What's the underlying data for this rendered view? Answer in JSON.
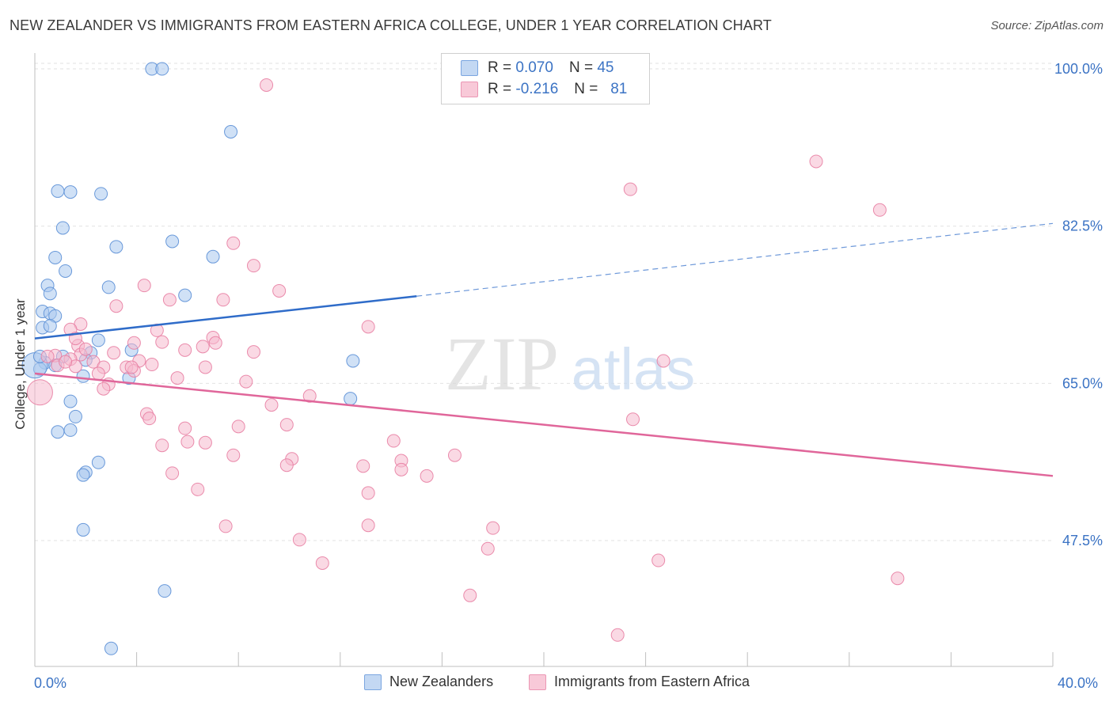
{
  "header": {
    "title": "NEW ZEALANDER VS IMMIGRANTS FROM EASTERN AFRICA COLLEGE, UNDER 1 YEAR CORRELATION CHART",
    "source": "Source: ZipAtlas.com"
  },
  "watermark": {
    "zip": "ZIP",
    "atlas": "atlas"
  },
  "legend_top": {
    "rows": [
      {
        "r_label": "R =",
        "r_value": "0.070",
        "n_label": "N =",
        "n_value": "45"
      },
      {
        "r_label": "R =",
        "r_value": "-0.216",
        "n_label": "N =",
        "n_value": "81"
      }
    ]
  },
  "colors": {
    "blue_fill": "#a9c8ef",
    "blue_stroke": "#5b8fd6",
    "blue_line": "#2f6cc9",
    "pink_fill": "#f6b9cd",
    "pink_stroke": "#e87fa3",
    "pink_line": "#e0669a",
    "tick_label": "#3b73c4",
    "grid": "#e2e2e2"
  },
  "chart_data": {
    "type": "scatter",
    "title": "NEW ZEALANDER VS IMMIGRANTS FROM EASTERN AFRICA COLLEGE, UNDER 1 YEAR CORRELATION CHART",
    "xlabel": "",
    "ylabel": "College, Under 1 year",
    "xlim": [
      0,
      40
    ],
    "ylim": [
      33.5,
      101.5
    ],
    "x_tick_labels": [
      "0.0%",
      "40.0%"
    ],
    "y_ticks": [
      47.5,
      65.0,
      82.5,
      100.0
    ],
    "y_tick_labels": [
      "47.5%",
      "65.0%",
      "82.5%",
      "100.0%"
    ],
    "grid": "horizontal dashed",
    "legend_position": "bottom",
    "series": [
      {
        "name": "New Zealanders",
        "r": 0.07,
        "n": 45,
        "trend": {
          "x_solid": [
            0,
            15
          ],
          "y_solid": [
            70.0,
            74.7
          ],
          "x_dashed": [
            15,
            40
          ],
          "y_dashed": [
            74.7,
            82.8
          ]
        },
        "points": [
          [
            4.6,
            100
          ],
          [
            5.0,
            100
          ],
          [
            7.7,
            93.0
          ],
          [
            0.9,
            86.4
          ],
          [
            1.4,
            86.3
          ],
          [
            2.6,
            86.1
          ],
          [
            1.1,
            82.3
          ],
          [
            3.2,
            80.2
          ],
          [
            5.4,
            80.8
          ],
          [
            0.8,
            79.0
          ],
          [
            7.0,
            79.1
          ],
          [
            1.2,
            77.5
          ],
          [
            0.5,
            75.9
          ],
          [
            2.9,
            75.7
          ],
          [
            0.6,
            75.0
          ],
          [
            5.9,
            74.8
          ],
          [
            0.3,
            73.0
          ],
          [
            0.6,
            72.8
          ],
          [
            0.8,
            72.5
          ],
          [
            0.3,
            71.2
          ],
          [
            0.6,
            71.4
          ],
          [
            2.5,
            69.8
          ],
          [
            3.8,
            68.7
          ],
          [
            2.2,
            68.4
          ],
          [
            1.1,
            68.0
          ],
          [
            2.0,
            67.6
          ],
          [
            0.4,
            67.3
          ],
          [
            0.8,
            67.0
          ],
          [
            12.5,
            67.5
          ],
          [
            0.2,
            66.6
          ],
          [
            1.9,
            65.8
          ],
          [
            3.7,
            65.6
          ],
          [
            1.4,
            63.0
          ],
          [
            12.4,
            63.3
          ],
          [
            1.6,
            61.3
          ],
          [
            1.4,
            59.8
          ],
          [
            0.9,
            59.6
          ],
          [
            2.5,
            56.2
          ],
          [
            2.0,
            55.1
          ],
          [
            1.9,
            54.8
          ],
          [
            1.9,
            48.7
          ],
          [
            5.1,
            41.9
          ],
          [
            3.0,
            35.5
          ],
          [
            0.0,
            67.0
          ],
          [
            0.2,
            68.0
          ]
        ]
      },
      {
        "name": "Immigrants from Eastern Africa",
        "r": -0.216,
        "n": 81,
        "trend": {
          "x": [
            0,
            40
          ],
          "y": [
            66.1,
            54.7
          ]
        },
        "points": [
          [
            9.1,
            98.2
          ],
          [
            30.7,
            89.7
          ],
          [
            23.4,
            86.6
          ],
          [
            33.2,
            84.3
          ],
          [
            7.8,
            80.6
          ],
          [
            8.6,
            78.1
          ],
          [
            4.3,
            75.9
          ],
          [
            9.6,
            75.3
          ],
          [
            5.3,
            74.3
          ],
          [
            7.4,
            74.3
          ],
          [
            3.2,
            73.6
          ],
          [
            13.1,
            71.3
          ],
          [
            1.8,
            71.6
          ],
          [
            1.4,
            71.0
          ],
          [
            4.8,
            70.9
          ],
          [
            7.0,
            70.1
          ],
          [
            1.7,
            69.2
          ],
          [
            3.9,
            69.5
          ],
          [
            5.0,
            69.6
          ],
          [
            6.6,
            69.1
          ],
          [
            7.1,
            69.5
          ],
          [
            5.9,
            68.7
          ],
          [
            8.6,
            68.5
          ],
          [
            3.1,
            68.4
          ],
          [
            1.8,
            68.2
          ],
          [
            0.8,
            68.1
          ],
          [
            1.4,
            67.7
          ],
          [
            2.3,
            67.4
          ],
          [
            4.1,
            67.5
          ],
          [
            0.9,
            67.0
          ],
          [
            1.6,
            66.9
          ],
          [
            6.7,
            66.8
          ],
          [
            2.7,
            66.8
          ],
          [
            3.6,
            66.8
          ],
          [
            3.9,
            66.4
          ],
          [
            24.7,
            67.5
          ],
          [
            2.5,
            66.1
          ],
          [
            5.6,
            65.6
          ],
          [
            8.3,
            65.2
          ],
          [
            2.9,
            64.9
          ],
          [
            2.7,
            64.4
          ],
          [
            10.8,
            63.6
          ],
          [
            9.3,
            62.6
          ],
          [
            4.4,
            61.6
          ],
          [
            4.5,
            61.1
          ],
          [
            23.5,
            61.0
          ],
          [
            8.0,
            60.2
          ],
          [
            9.9,
            60.4
          ],
          [
            5.9,
            60.0
          ],
          [
            6.0,
            58.5
          ],
          [
            6.7,
            58.4
          ],
          [
            14.1,
            58.6
          ],
          [
            5.0,
            58.1
          ],
          [
            7.8,
            57.0
          ],
          [
            16.5,
            57.0
          ],
          [
            10.1,
            56.6
          ],
          [
            14.4,
            56.4
          ],
          [
            9.9,
            55.9
          ],
          [
            12.9,
            55.8
          ],
          [
            14.4,
            55.4
          ],
          [
            15.4,
            54.7
          ],
          [
            5.4,
            55.0
          ],
          [
            6.4,
            53.2
          ],
          [
            13.1,
            52.8
          ],
          [
            7.5,
            49.1
          ],
          [
            13.1,
            49.2
          ],
          [
            18.0,
            48.9
          ],
          [
            10.4,
            47.6
          ],
          [
            17.8,
            46.6
          ],
          [
            11.3,
            45.0
          ],
          [
            24.5,
            45.3
          ],
          [
            33.9,
            43.3
          ],
          [
            17.1,
            41.4
          ],
          [
            22.9,
            37.0
          ],
          [
            0.2,
            64.0
          ],
          [
            1.2,
            67.4
          ],
          [
            0.5,
            68.0
          ],
          [
            2.0,
            68.8
          ],
          [
            3.8,
            66.8
          ],
          [
            4.6,
            67.1
          ],
          [
            1.6,
            70.0
          ]
        ]
      }
    ]
  },
  "legend_bottom": {
    "items": [
      {
        "label": "New Zealanders"
      },
      {
        "label": "Immigrants from Eastern Africa"
      }
    ]
  }
}
